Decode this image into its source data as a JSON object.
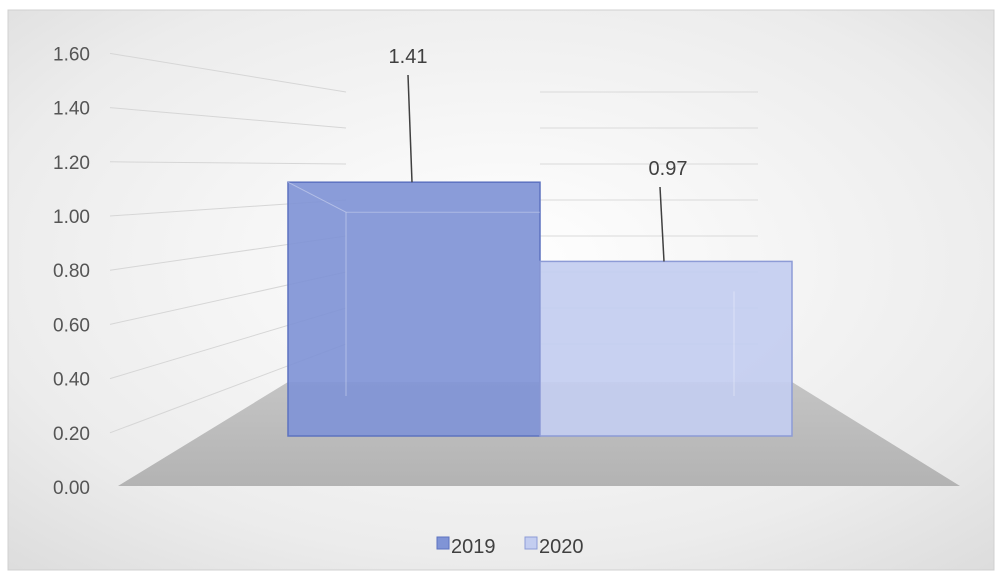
{
  "chart_data": {
    "type": "bar",
    "style": "3d-clustered",
    "categories": [
      "2019",
      "2020"
    ],
    "values": [
      1.41,
      0.97
    ],
    "data_labels": [
      "1.41",
      "0.97"
    ],
    "colors": [
      "#8094d6",
      "#c3cdf0"
    ],
    "ylim": [
      0.0,
      1.6
    ],
    "yticks": [
      "0.00",
      "0.20",
      "0.40",
      "0.60",
      "0.80",
      "1.00",
      "1.20",
      "1.40",
      "1.60"
    ],
    "grid": true,
    "legend": "bottom",
    "legend_entries": [
      "2019",
      "2020"
    ],
    "title": "",
    "xlabel": "",
    "ylabel": ""
  }
}
